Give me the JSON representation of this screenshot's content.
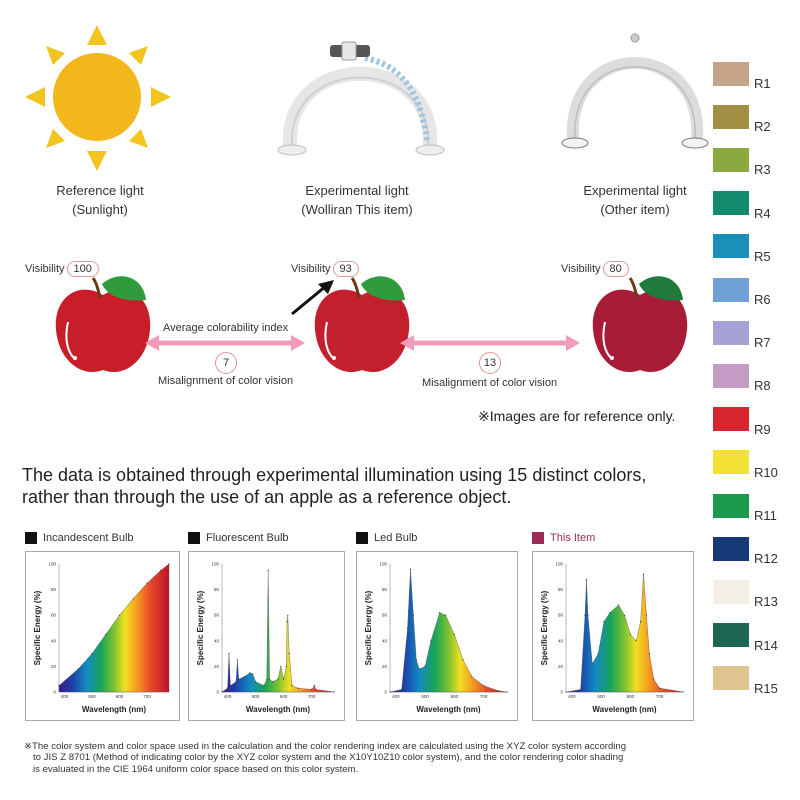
{
  "lights": [
    {
      "title": "Reference light",
      "subtitle": "(Sunlight)",
      "icon": "sun-icon"
    },
    {
      "title": "Experimental light",
      "subtitle": "(Wolliran This item)",
      "icon": "arch-lamp-icon"
    },
    {
      "title": "Experimental light",
      "subtitle": "(Other item)",
      "icon": "arch-lamp-icon"
    }
  ],
  "apples": [
    {
      "visibility_label": "Visibility",
      "visibility_value": "100",
      "color": "#c81e2a"
    },
    {
      "visibility_label": "Visibility",
      "visibility_value": "93",
      "color": "#c41f2c"
    },
    {
      "visibility_label": "Visibility",
      "visibility_value": "80",
      "color": "#a81c38"
    }
  ],
  "comparison": {
    "left_label": "Average colorability index",
    "left_value": "7",
    "left_caption": "Misalignment of color vision",
    "right_value": "13",
    "right_caption": "Misalignment of color vision"
  },
  "disclaimer": "※Images are for reference only.",
  "headline_line1": "The data is obtained through experimental illumination using 15 distinct colors,",
  "headline_line2": "rather than through the use of an apple as a reference object.",
  "swatches": [
    {
      "label": "R1",
      "color": "#c5a489"
    },
    {
      "label": "R2",
      "color": "#a39045"
    },
    {
      "label": "R3",
      "color": "#8aa93f"
    },
    {
      "label": "R4",
      "color": "#138a6e"
    },
    {
      "label": "R5",
      "color": "#1a8fba"
    },
    {
      "label": "R6",
      "color": "#6fa0d6"
    },
    {
      "label": "R7",
      "color": "#a7a2d6"
    },
    {
      "label": "R8",
      "color": "#c39bc5"
    },
    {
      "label": "R9",
      "color": "#d7262e"
    },
    {
      "label": "R10",
      "color": "#f2e236"
    },
    {
      "label": "R11",
      "color": "#1b9a4b"
    },
    {
      "label": "R12",
      "color": "#163a78"
    },
    {
      "label": "R13",
      "color": "#f3efe7"
    },
    {
      "label": "R14",
      "color": "#1f6653"
    },
    {
      "label": "R15",
      "color": "#e0c48f"
    }
  ],
  "charts_legend": [
    {
      "label": "Incandescent Bulb",
      "color": "#111111"
    },
    {
      "label": "Fluorescent Bulb",
      "color": "#111111"
    },
    {
      "label": "Led Bulb",
      "color": "#111111"
    },
    {
      "label": "This Item",
      "color": "#9b2a55"
    }
  ],
  "chart_data": [
    {
      "type": "area",
      "title": "Incandescent Bulb",
      "xlabel": "Wavelength (nm)",
      "ylabel": "Specific Energy (%)",
      "xlim": [
        380,
        780
      ],
      "ylim": [
        0,
        100
      ],
      "x_ticks": [
        "400",
        "500",
        "600",
        "700"
      ],
      "y_ticks": [
        "0",
        "20",
        "40",
        "60",
        "80",
        "100"
      ],
      "x": [
        380,
        450,
        500,
        550,
        600,
        650,
        700,
        750,
        780
      ],
      "y": [
        5,
        18,
        30,
        45,
        60,
        73,
        85,
        95,
        100
      ]
    },
    {
      "type": "area",
      "title": "Fluorescent Bulb",
      "xlabel": "Wavelength (nm)",
      "ylabel": "Specific Energy (%)",
      "xlim": [
        380,
        780
      ],
      "ylim": [
        0,
        100
      ],
      "x_ticks": [
        "400",
        "500",
        "600",
        "700"
      ],
      "y_ticks": [
        "0",
        "20",
        "40",
        "60",
        "80",
        "100"
      ],
      "x": [
        380,
        400,
        405,
        410,
        430,
        435,
        440,
        460,
        480,
        490,
        500,
        530,
        540,
        545,
        550,
        560,
        580,
        590,
        600,
        610,
        612,
        615,
        620,
        630,
        650,
        700,
        710,
        715,
        780
      ],
      "y": [
        0,
        3,
        30,
        5,
        8,
        25,
        10,
        12,
        15,
        14,
        8,
        5,
        10,
        95,
        10,
        8,
        10,
        20,
        10,
        20,
        55,
        60,
        30,
        5,
        3,
        2,
        5,
        2,
        0
      ]
    },
    {
      "type": "area",
      "title": "Led Bulb",
      "xlabel": "Wavelength (nm)",
      "ylabel": "Specific Energy (%)",
      "xlim": [
        380,
        780
      ],
      "ylim": [
        0,
        100
      ],
      "x_ticks": [
        "400",
        "500",
        "600",
        "700"
      ],
      "y_ticks": [
        "0",
        "20",
        "40",
        "60",
        "80",
        "100"
      ],
      "x": [
        380,
        420,
        440,
        450,
        460,
        470,
        480,
        500,
        520,
        550,
        570,
        600,
        630,
        660,
        700,
        750,
        780
      ],
      "y": [
        0,
        2,
        50,
        96,
        60,
        25,
        18,
        20,
        40,
        62,
        60,
        45,
        25,
        12,
        5,
        1,
        0
      ]
    },
    {
      "type": "area",
      "title": "This Item",
      "xlabel": "Wavelength (nm)",
      "ylabel": "Specific Energy (%)",
      "xlim": [
        380,
        780
      ],
      "ylim": [
        0,
        100
      ],
      "x_ticks": [
        "400",
        "500",
        "600",
        "700"
      ],
      "y_ticks": [
        "0",
        "20",
        "40",
        "60",
        "80",
        "100"
      ],
      "x": [
        380,
        430,
        445,
        450,
        455,
        470,
        490,
        510,
        530,
        560,
        580,
        600,
        620,
        635,
        645,
        655,
        665,
        680,
        700,
        780
      ],
      "y": [
        0,
        2,
        60,
        88,
        60,
        22,
        30,
        55,
        62,
        68,
        60,
        45,
        40,
        55,
        92,
        60,
        30,
        10,
        3,
        0
      ]
    }
  ],
  "footnote": [
    "※The color system and color space used in the calculation and the color rendering index are calculated using the XYZ color system according",
    "to JIS Z 8701 (Method of indicating color by the XYZ color system and the X10Y10Z10 color system), and the color rendering color shading",
    "is evaluated in the CIE 1964 uniform color space based on this color system."
  ]
}
